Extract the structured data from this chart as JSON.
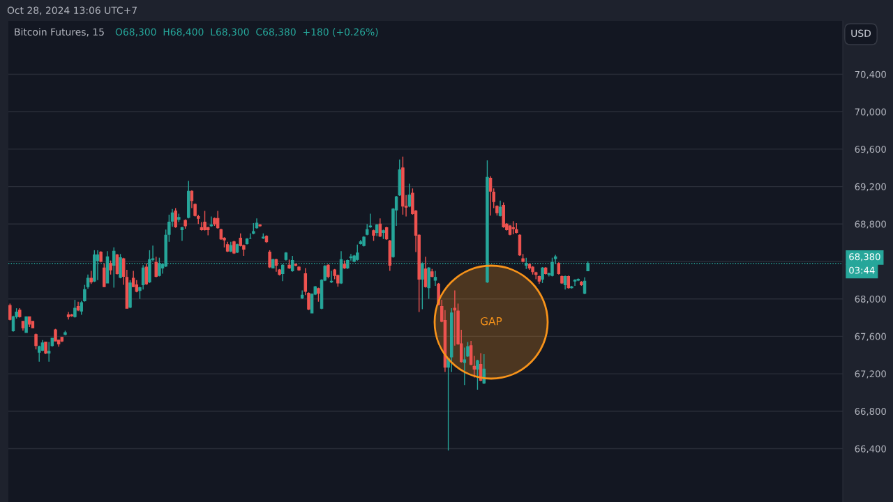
{
  "chart_data": {
    "type": "candlestick",
    "title": "Bitcoin Futures, 15",
    "subtitle": "O68,300  H68,400  L68,300  C68,380  +180 (+0.26%)",
    "ylabel": "USD",
    "annotations": [
      "Oct 28, 2024 13:06 UTC+7",
      "GAP",
      "03:44"
    ],
    "colors": [
      "#ef5350",
      "#26a69a",
      "#26a69a",
      "#ef5350",
      "#ef5350",
      "#26a69a",
      "#ef5350",
      "#ef5350",
      "#ef5350",
      "#26a69a",
      "#26a69a",
      "#ef5350",
      "#26a69a",
      "#26a69a",
      "#ef5350",
      "#ef5350",
      "#ef5350",
      "#26a69a",
      "#ef5350",
      "#ef5350",
      "#26a69a",
      "#ef5350",
      "#26a69a",
      "#26a69a",
      "#26a69a",
      "#ef5350",
      "#26a69a",
      "#26a69a",
      "#ef5350",
      "#ef5350",
      "#26a69a",
      "#ef5350",
      "#26a69a",
      "#ef5350",
      "#26a69a",
      "#ef5350",
      "#ef5350",
      "#26a69a",
      "#ef5350",
      "#ef5350",
      "#26a69a",
      "#26a69a",
      "#ef5350",
      "#26a69a",
      "#26a69a",
      "#ef5350",
      "#26a69a",
      "#26a69a",
      "#26a69a",
      "#26a69a",
      "#26a69a",
      "#ef5350",
      "#26a69a",
      "#26a69a",
      "#ef5350",
      "#26a69a",
      "#ef5350",
      "#ef5350",
      "#ef5350",
      "#ef5350",
      "#ef5350",
      "#ef5350",
      "#26a69a",
      "#ef5350",
      "#ef5350",
      "#ef5350",
      "#ef5350",
      "#ef5350",
      "#26a69a",
      "#ef5350",
      "#26a69a",
      "#ef5350",
      "#ef5350",
      "#26a69a",
      "#26a69a",
      "#26a69a",
      "#26a69a",
      "#ef5350",
      "#26a69a",
      "#ef5350",
      "#ef5350",
      "#26a69a",
      "#ef5350",
      "#ef5350",
      "#26a69a",
      "#26a69a",
      "#ef5350",
      "#26a69a",
      "#ef5350",
      "#ef5350",
      "#26a69a",
      "#ef5350",
      "#ef5350",
      "#26a69a",
      "#26a69a",
      "#ef5350",
      "#26a69a",
      "#26a69a",
      "#ef5350",
      "#26a69a",
      "#ef5350",
      "#ef5350",
      "#26a69a",
      "#ef5350",
      "#26a69a",
      "#26a69a",
      "#26a69a",
      "#26a69a",
      "#26a69a",
      "#26a69a",
      "#26a69a",
      "#26a69a",
      "#ef5350",
      "#26a69a",
      "#ef5350",
      "#26a69a",
      "#ef5350",
      "#ef5350",
      "#26a69a",
      "#26a69a",
      "#26a69a",
      "#ef5350",
      "#ef5350",
      "#26a69a",
      "#ef5350",
      "#ef5350",
      "#ef5350",
      "#26a69a",
      "#ef5350",
      "#26a69a",
      "#ef5350",
      "#26a69a",
      "#ef5350",
      "#ef5350",
      "#ef5350",
      "#26a69a",
      "#26a69a",
      "#ef5350",
      "#ef5350",
      "#ef5350",
      "#26a69a",
      "#26a69a",
      "#ef5350",
      "#ef5350",
      "#26a69a",
      "#ef5350",
      "#26a69a",
      "#26a69a",
      "#ef5350",
      "#ef5350",
      "#ef5350",
      "#26a69a",
      "#ef5350",
      "#ef5350",
      "#ef5350",
      "#ef5350",
      "#ef5350",
      "#ef5350",
      "#ef5350",
      "#26a69a",
      "#ef5350",
      "#ef5350",
      "#ef5350",
      "#ef5350",
      "#26a69a",
      "#ef5350",
      "#26a69a",
      "#26a69a",
      "#26a69a",
      "#ef5350",
      "#ef5350",
      "#26a69a",
      "#ef5350",
      "#26a69a",
      "#26a69a",
      "#26a69a",
      "#ef5350",
      "#26a69a",
      "#26a69a",
      null,
      null,
      null,
      null,
      null,
      null,
      null,
      null,
      null,
      null,
      null,
      null,
      null,
      null,
      null,
      null,
      null,
      null,
      null,
      null,
      null,
      null,
      null,
      null,
      null,
      null,
      null,
      null,
      null,
      null,
      null,
      null,
      null,
      null,
      null,
      null,
      null,
      null,
      null,
      null,
      null,
      null,
      null,
      null,
      null,
      null,
      null,
      null,
      null,
      null,
      null,
      null,
      null,
      null,
      null,
      null,
      null,
      null,
      null,
      null,
      null,
      null,
      null,
      null,
      null,
      null,
      null,
      null,
      null,
      null,
      null,
      null,
      null,
      null,
      null,
      null,
      null,
      null
    ],
    "ylim": [
      65830,
      70970
    ],
    "yticks": [
      {
        "value": 66400,
        "label": "66,400"
      },
      {
        "value": 66800,
        "label": "66,800"
      },
      {
        "value": 67200,
        "label": "67,200"
      },
      {
        "value": 67600,
        "label": "67,600"
      },
      {
        "value": 68000,
        "label": "68,000"
      },
      {
        "value": 68400,
        "label": null
      },
      {
        "value": 68800,
        "label": "68,800"
      },
      {
        "value": 69200,
        "label": "69,200"
      },
      {
        "value": 69600,
        "label": "69,600"
      },
      {
        "value": 70000,
        "label": "70,000"
      },
      {
        "value": 70400,
        "label": "70,400"
      }
    ],
    "ref_lines": [
      {
        "axis": "y",
        "value": 68380,
        "label": "68,380",
        "color": "#26a69a",
        "line_style": "dotted"
      }
    ],
    "grid": "y",
    "legend": false,
    "tick_labels": "y",
    "categories": [
      null,
      null,
      null,
      null,
      null,
      null,
      null,
      null,
      null,
      null,
      null,
      null,
      null,
      null,
      null,
      null,
      null,
      null,
      null,
      null,
      null,
      null,
      null,
      null,
      null,
      null,
      null,
      null,
      null,
      null,
      null,
      null,
      null,
      null,
      null,
      null,
      null,
      null,
      null,
      null,
      null,
      null,
      null,
      null,
      null,
      null,
      null,
      null,
      null,
      null,
      null,
      null,
      null,
      null,
      null,
      null,
      null,
      null,
      null,
      null,
      null,
      null,
      null,
      null,
      null,
      null,
      null,
      null,
      null,
      null,
      null,
      null,
      null,
      null,
      null,
      null,
      null,
      null,
      null,
      null,
      null,
      null,
      null,
      null,
      null,
      null,
      null,
      null,
      null,
      null,
      null,
      null,
      null,
      null,
      null,
      null,
      null,
      null,
      null,
      null,
      null,
      null,
      null,
      null,
      null,
      null,
      null,
      null,
      null,
      null,
      null,
      null,
      null,
      null,
      null,
      null,
      null,
      null,
      null,
      null,
      null,
      null,
      null,
      null,
      null,
      null,
      null,
      null,
      null,
      null,
      null,
      null,
      null,
      null,
      null,
      null,
      null,
      null,
      null,
      null,
      null,
      null,
      null,
      null,
      null,
      null,
      null,
      null,
      null,
      null,
      null,
      null,
      null,
      null,
      null,
      null,
      null,
      null,
      null,
      null,
      null,
      null,
      null,
      null,
      null,
      null,
      null,
      null,
      null,
      null,
      null,
      null,
      null,
      null,
      null,
      null,
      null,
      null,
      null,
      null,
      null,
      null,
      null,
      null,
      null,
      null,
      null,
      null,
      null,
      null,
      null,
      null,
      null,
      null,
      null,
      null,
      null,
      null,
      null,
      null,
      null,
      null,
      null,
      null,
      null,
      null,
      null,
      null,
      null,
      null,
      null,
      null,
      null,
      null,
      null,
      null,
      null,
      null,
      null,
      null,
      null,
      null,
      null,
      null,
      null,
      null,
      null,
      null,
      null,
      null,
      null,
      null,
      null,
      null,
      null,
      null,
      null,
      null,
      null,
      null,
      null,
      null,
      null,
      null,
      null,
      null,
      null,
      null,
      null,
      null,
      null,
      null,
      null,
      null,
      null,
      null,
      null
    ],
    "ohlc": [
      [
        67930,
        67950,
        67770,
        67780
      ],
      [
        67660,
        67820,
        67650,
        67810
      ],
      [
        67810,
        67900,
        67790,
        67860
      ],
      [
        67880,
        67900,
        67800,
        67810
      ],
      [
        67760,
        67760,
        67660,
        67690
      ],
      [
        67640,
        67810,
        67640,
        67810
      ],
      [
        67810,
        67810,
        67700,
        67730
      ],
      [
        67760,
        67760,
        67690,
        67690
      ],
      [
        67620,
        67630,
        67460,
        67500
      ],
      [
        67430,
        67500,
        67330,
        67490
      ],
      [
        67450,
        67560,
        67440,
        67530
      ],
      [
        67540,
        67540,
        67410,
        67420
      ],
      [
        67420,
        67540,
        67330,
        67440
      ],
      [
        67500,
        67580,
        67490,
        67580
      ],
      [
        67670,
        67680,
        67550,
        67550
      ],
      [
        67560,
        67560,
        67490,
        67520
      ],
      [
        67590,
        67590,
        67540,
        67550
      ],
      [
        67620,
        67660,
        67610,
        67640
      ],
      [
        67830,
        67860,
        67780,
        67810
      ],
      [
        67830,
        67840,
        67810,
        67820
      ],
      [
        67810,
        67990,
        67800,
        67900
      ],
      [
        67920,
        67970,
        67870,
        67880
      ],
      [
        67870,
        67980,
        67830,
        67960
      ],
      [
        67980,
        68150,
        67970,
        68100
      ],
      [
        68130,
        68260,
        68110,
        68220
      ],
      [
        68220,
        68300,
        68160,
        68180
      ],
      [
        68190,
        68520,
        68180,
        68470
      ],
      [
        68410,
        68520,
        68200,
        68470
      ],
      [
        68500,
        68510,
        68390,
        68400
      ],
      [
        68330,
        68380,
        68130,
        68130
      ],
      [
        68170,
        68510,
        68170,
        68450
      ],
      [
        68380,
        68410,
        68260,
        68310
      ],
      [
        68360,
        68550,
        68120,
        68510
      ],
      [
        68470,
        68480,
        68260,
        68270
      ],
      [
        68230,
        68480,
        68220,
        68440
      ],
      [
        68430,
        68440,
        68150,
        68240
      ],
      [
        68230,
        68310,
        67900,
        67900
      ],
      [
        67910,
        68200,
        67900,
        68170
      ],
      [
        68220,
        68300,
        68130,
        68130
      ],
      [
        68150,
        68200,
        68070,
        68080
      ],
      [
        68090,
        68130,
        68000,
        68120
      ],
      [
        68150,
        68360,
        68100,
        68330
      ],
      [
        68340,
        68380,
        68150,
        68160
      ],
      [
        68180,
        68520,
        68170,
        68420
      ],
      [
        68420,
        68570,
        68400,
        68430
      ],
      [
        68390,
        68450,
        68230,
        68240
      ],
      [
        68250,
        68440,
        68240,
        68380
      ],
      [
        68330,
        68380,
        68270,
        68370
      ],
      [
        68350,
        68740,
        68340,
        68680
      ],
      [
        68690,
        68900,
        68610,
        68820
      ],
      [
        68830,
        68960,
        68770,
        68920
      ],
      [
        68940,
        68970,
        68760,
        68770
      ],
      [
        68850,
        68910,
        68820,
        68870
      ],
      [
        68740,
        68770,
        68620,
        68760
      ],
      [
        68840,
        68850,
        68750,
        68780
      ],
      [
        68870,
        69260,
        68860,
        69150
      ],
      [
        69150,
        69160,
        68970,
        69050
      ],
      [
        69010,
        69020,
        68880,
        68890
      ],
      [
        68880,
        68900,
        68800,
        68860
      ],
      [
        68760,
        68820,
        68730,
        68740
      ],
      [
        68820,
        68940,
        68730,
        68740
      ],
      [
        68760,
        68770,
        68680,
        68740
      ],
      [
        68780,
        68880,
        68770,
        68790
      ],
      [
        68860,
        68870,
        68780,
        68800
      ],
      [
        68860,
        68940,
        68750,
        68760
      ],
      [
        68740,
        68750,
        68630,
        68640
      ],
      [
        68650,
        68660,
        68550,
        68630
      ],
      [
        68580,
        68610,
        68500,
        68510
      ],
      [
        68510,
        68610,
        68500,
        68570
      ],
      [
        68610,
        68620,
        68480,
        68490
      ],
      [
        68500,
        68590,
        68490,
        68580
      ],
      [
        68650,
        68700,
        68560,
        68570
      ],
      [
        68570,
        68580,
        68460,
        68530
      ],
      [
        68590,
        68650,
        68580,
        68640
      ],
      [
        68650,
        68700,
        68640,
        68650
      ],
      [
        68700,
        68810,
        68690,
        68720
      ],
      [
        68760,
        68860,
        68750,
        68810
      ],
      [
        68790,
        68800,
        68770,
        68780
      ],
      [
        68650,
        68700,
        68640,
        68660
      ],
      [
        68670,
        68680,
        68600,
        68610
      ],
      [
        68500,
        68520,
        68330,
        68340
      ],
      [
        68330,
        68430,
        68330,
        68420
      ],
      [
        68420,
        68430,
        68290,
        68360
      ],
      [
        68310,
        68320,
        68250,
        68260
      ],
      [
        68270,
        68370,
        68190,
        68360
      ],
      [
        68420,
        68500,
        68410,
        68490
      ],
      [
        68360,
        68420,
        68320,
        68330
      ],
      [
        68300,
        68460,
        68290,
        68410
      ],
      [
        68370,
        68380,
        68350,
        68360
      ],
      [
        68340,
        68350,
        68300,
        68310
      ],
      [
        68010,
        68090,
        68000,
        68040
      ],
      [
        68270,
        68330,
        68040,
        68080
      ],
      [
        68060,
        68070,
        67880,
        67890
      ],
      [
        67850,
        68060,
        67850,
        68050
      ],
      [
        68050,
        68140,
        68040,
        68130
      ],
      [
        68110,
        68120,
        67970,
        68060
      ],
      [
        67900,
        68210,
        67890,
        68200
      ],
      [
        68200,
        68360,
        68190,
        68350
      ],
      [
        68360,
        68370,
        68220,
        68240
      ],
      [
        68180,
        68300,
        68170,
        68190
      ],
      [
        68310,
        68320,
        68210,
        68250
      ],
      [
        68250,
        68260,
        68130,
        68170
      ],
      [
        68170,
        68510,
        68160,
        68420
      ],
      [
        68370,
        68410,
        68320,
        68330
      ],
      [
        68330,
        68420,
        68320,
        68410
      ],
      [
        68440,
        68480,
        68410,
        68450
      ],
      [
        68400,
        68470,
        68390,
        68460
      ],
      [
        68420,
        68580,
        68410,
        68490
      ],
      [
        68590,
        68630,
        68580,
        68610
      ],
      [
        68570,
        68670,
        68560,
        68660
      ],
      [
        68690,
        68800,
        68680,
        68740
      ],
      [
        68770,
        68910,
        68760,
        68780
      ],
      [
        68730,
        68740,
        68620,
        68680
      ],
      [
        68710,
        68800,
        68670,
        68790
      ],
      [
        68800,
        68860,
        68660,
        68670
      ],
      [
        68710,
        68740,
        68640,
        68730
      ],
      [
        68760,
        68770,
        68630,
        68640
      ],
      [
        68620,
        68630,
        68300,
        68360
      ],
      [
        68450,
        68970,
        68440,
        68960
      ],
      [
        68950,
        69100,
        68780,
        69090
      ],
      [
        69110,
        69490,
        69100,
        69380
      ],
      [
        69400,
        69520,
        68900,
        68990
      ],
      [
        68990,
        69110,
        68880,
        68980
      ],
      [
        68990,
        69230,
        68980,
        69110
      ],
      [
        69130,
        69180,
        68900,
        68910
      ],
      [
        68940,
        68950,
        68500,
        68680
      ],
      [
        68680,
        68690,
        67860,
        68210
      ],
      [
        68210,
        68390,
        67890,
        68380
      ],
      [
        68320,
        68450,
        68120,
        68130
      ],
      [
        68120,
        68340,
        68000,
        68330
      ],
      [
        68290,
        68320,
        68230,
        68240
      ],
      [
        68200,
        68300,
        68140,
        68230
      ],
      [
        68160,
        68170,
        67930,
        67940
      ],
      [
        67920,
        67990,
        67750,
        67760
      ],
      [
        67770,
        67880,
        67220,
        67270
      ],
      [
        67270,
        67370,
        66380,
        67360
      ],
      [
        67380,
        67900,
        67220,
        67850
      ],
      [
        67900,
        68090,
        67500,
        67880
      ],
      [
        67870,
        67950,
        67510,
        67520
      ],
      [
        67520,
        67670,
        67320,
        67330
      ],
      [
        67320,
        67480,
        67080,
        67350
      ],
      [
        67390,
        67540,
        67380,
        67490
      ],
      [
        67500,
        67550,
        67290,
        67300
      ],
      [
        67280,
        67390,
        67160,
        67250
      ],
      [
        67250,
        67350,
        67030,
        67340
      ],
      [
        67300,
        67420,
        67120,
        67130
      ],
      [
        67100,
        67410,
        67090,
        67250
      ],
      [
        68180,
        69480,
        68170,
        69300
      ],
      [
        69290,
        69310,
        68890,
        69150
      ],
      [
        69140,
        69180,
        68970,
        69040
      ],
      [
        68990,
        69000,
        68890,
        68920
      ],
      [
        68890,
        69050,
        68880,
        68980
      ],
      [
        69000,
        69030,
        68760,
        68770
      ],
      [
        68800,
        68810,
        68730,
        68740
      ],
      [
        68780,
        68790,
        68680,
        68690
      ],
      [
        68760,
        68830,
        68690,
        68750
      ],
      [
        68740,
        68810,
        68700,
        68710
      ],
      [
        68680,
        68690,
        68460,
        68470
      ],
      [
        68430,
        68480,
        68390,
        68400
      ],
      [
        68360,
        68440,
        68320,
        68380
      ],
      [
        68370,
        68380,
        68310,
        68330
      ],
      [
        68340,
        68350,
        68260,
        68290
      ],
      [
        68280,
        68290,
        68210,
        68260
      ],
      [
        68240,
        68250,
        68160,
        68190
      ],
      [
        68210,
        68340,
        68170,
        68330
      ],
      [
        68330,
        68340,
        68260,
        68270
      ],
      [
        68260,
        68280,
        68240,
        68270
      ],
      [
        68250,
        68440,
        68240,
        68390
      ],
      [
        68430,
        68470,
        68370,
        68450
      ],
      [
        68380,
        68390,
        68260,
        68270
      ],
      [
        68240,
        68250,
        68160,
        68170
      ],
      [
        68150,
        68250,
        68100,
        68240
      ],
      [
        68240,
        68250,
        68110,
        68120
      ],
      [
        68120,
        68140,
        68110,
        68130
      ],
      [
        68190,
        68210,
        68140,
        68200
      ],
      [
        68200,
        68220,
        68190,
        68210
      ],
      [
        68180,
        68190,
        68140,
        68150
      ],
      [
        68060,
        68230,
        68050,
        68190
      ],
      [
        68300,
        68400,
        68300,
        68380
      ],
      null,
      null,
      null,
      null,
      null,
      null,
      null,
      null,
      null,
      null,
      null,
      null,
      null,
      null,
      null,
      null,
      null,
      null,
      null,
      null,
      null,
      null,
      null,
      null,
      null,
      null,
      null,
      null,
      null,
      null,
      null,
      null,
      null,
      null,
      null,
      null,
      null,
      null,
      null,
      null,
      null,
      null,
      null,
      null,
      null,
      null,
      null,
      null,
      null,
      null,
      null,
      null,
      null,
      null,
      null,
      null,
      null,
      null,
      null,
      null,
      null,
      null,
      null,
      null,
      null,
      null,
      null,
      null,
      null,
      null,
      null,
      null,
      null,
      null,
      null,
      null,
      null,
      null
    ]
  }
}
